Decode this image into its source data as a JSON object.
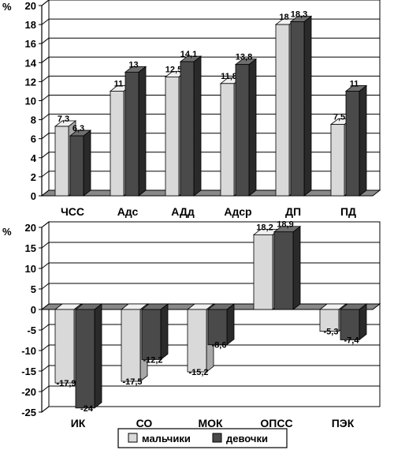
{
  "chart_data": [
    {
      "type": "bar",
      "unit_label": "%",
      "categories": [
        "ЧСС",
        "Адс",
        "АДд",
        "Адср",
        "ДП",
        "ПД"
      ],
      "series": [
        {
          "name": "мальчики",
          "values": [
            7.3,
            11,
            12.5,
            11.8,
            18,
            7.5
          ],
          "labels": [
            "7,3",
            "11",
            "12,5",
            "11,8",
            "18",
            "7,5"
          ]
        },
        {
          "name": "девочки",
          "values": [
            6.3,
            13,
            14.1,
            13.8,
            18.3,
            11
          ],
          "labels": [
            "6,3",
            "13",
            "14,1",
            "13,8",
            "18,3",
            "11"
          ]
        }
      ],
      "ylim": [
        0,
        20
      ],
      "yticks": [
        0,
        2,
        4,
        6,
        8,
        10,
        12,
        14,
        16,
        18,
        20
      ],
      "grid": true,
      "style": "3d"
    },
    {
      "type": "bar",
      "unit_label": "%",
      "categories": [
        "ИК",
        "СО",
        "МОК",
        "ОПСС",
        "ПЭК"
      ],
      "series": [
        {
          "name": "мальчики",
          "values": [
            -17.9,
            -17.5,
            -15.2,
            18.2,
            -5.3
          ],
          "labels": [
            "-17,9",
            "-17,5",
            "-15,2",
            "18,2",
            "-5,3"
          ]
        },
        {
          "name": "девочки",
          "values": [
            -24,
            -12.2,
            -8.6,
            18.9,
            -7.4
          ],
          "labels": [
            "-24",
            "-12,2",
            "-8,6",
            "18,9",
            "-7,4"
          ]
        }
      ],
      "ylim": [
        -25,
        20
      ],
      "yticks": [
        -25,
        -20,
        -15,
        -10,
        -5,
        0,
        5,
        10,
        15,
        20
      ],
      "grid": true,
      "style": "3d"
    }
  ],
  "legend": {
    "position": "bottom",
    "items": [
      {
        "label": "мальчики",
        "color": "#d9d9d9"
      },
      {
        "label": "девочки",
        "color": "#4a4a4a"
      }
    ]
  },
  "colors": {
    "boys_front": "#d9d9d9",
    "boys_top": "#f0f0f0",
    "boys_side": "#a8a8a8",
    "girls_front": "#4a4a4a",
    "girls_top": "#6e6e6e",
    "girls_side": "#2a2a2a",
    "floor": "#888888",
    "grid": "#000000"
  }
}
